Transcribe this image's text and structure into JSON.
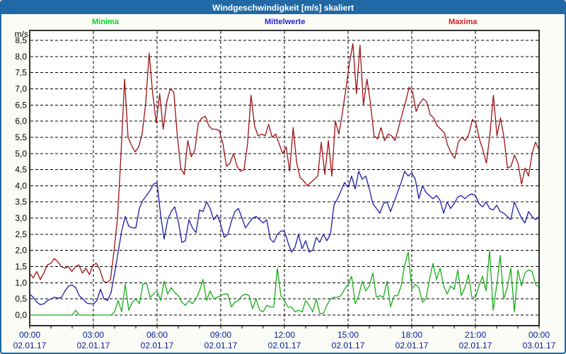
{
  "window": {
    "title": "Windgeschwindigkeit [m/s] skaliert"
  },
  "legend": {
    "minima": {
      "label": "Minima",
      "color": "#00d22c"
    },
    "mittelwerte": {
      "label": "Mittelwerte",
      "color": "#2626d2"
    },
    "maxima": {
      "label": "Maxima",
      "color": "#cd2026"
    }
  },
  "colors": {
    "frame": "#2069A5",
    "titlebar": "#2069A5",
    "window_bg": "#fcfcf6",
    "plot_bg": "#ffffff",
    "grid": "#000000",
    "y_label": "#000000",
    "x_label": "#001a99",
    "minima_line": "#17ad17",
    "mittelwerte_line": "#1c1ca8",
    "maxima_line": "#a01014"
  },
  "chart_data": {
    "type": "line",
    "title": "Windgeschwindigkeit [m/s] skaliert",
    "y_unit": "m/s",
    "ylim": [
      0,
      8.5
    ],
    "y_tick_step": 0.5,
    "y_tick_labels": [
      "0,0",
      "0,5",
      "1,0",
      "1,5",
      "2,0",
      "2,5",
      "3,0",
      "3,5",
      "4,0",
      "4,5",
      "5,0",
      "5,5",
      "6,0",
      "6,5",
      "7,0",
      "7,5",
      "8,0",
      "8,5"
    ],
    "x_ticks": [
      {
        "time": "00:00",
        "date": "02.01.17"
      },
      {
        "time": "03:00",
        "date": "02.01.17"
      },
      {
        "time": "06:00",
        "date": "02.01.17"
      },
      {
        "time": "09:00",
        "date": "02.01.17"
      },
      {
        "time": "12:00",
        "date": "02.01.17"
      },
      {
        "time": "15:00",
        "date": "02.01.17"
      },
      {
        "time": "18:00",
        "date": "02.01.17"
      },
      {
        "time": "21:00",
        "date": "02.01.17"
      },
      {
        "time": "00:00",
        "date": "03.01.17"
      }
    ],
    "x_minor_tick_hours": 1,
    "sample_interval_minutes": 10,
    "grid": "dashed",
    "legend_position": "top",
    "series": [
      {
        "name": "Minima",
        "color": "#17ad17",
        "values": [
          0.0,
          0.0,
          0.0,
          0.0,
          0.0,
          0.0,
          0.0,
          0.0,
          0.0,
          0.0,
          0.0,
          0.0,
          0.0,
          0.15,
          0.0,
          0.0,
          0.0,
          0.0,
          0.0,
          0.0,
          0.0,
          0.0,
          0.0,
          0.0,
          0.1,
          0.45,
          0.1,
          0.95,
          0.15,
          0.4,
          0.5,
          0.35,
          0.95,
          1.0,
          0.55,
          0.65,
          0.75,
          0.45,
          1.05,
          0.65,
          0.85,
          0.7,
          0.6,
          0.4,
          0.3,
          0.45,
          0.35,
          0.5,
          0.75,
          1.1,
          0.45,
          0.75,
          0.5,
          0.55,
          0.6,
          0.65,
          0.65,
          0.25,
          0.4,
          0.45,
          0.6,
          0.65,
          0.6,
          0.2,
          0.5,
          0.15,
          0.1,
          0.3,
          0.25,
          0.25,
          1.45,
          0.6,
          0.45,
          0.25,
          0.25,
          0.1,
          0.15,
          0.1,
          0.45,
          0.3,
          0.1,
          0.5,
          0.05,
          0.05,
          0.3,
          0.5,
          0.55,
          0.55,
          0.6,
          0.8,
          0.95,
          1.2,
          0.35,
          0.6,
          1.05,
          0.75,
          0.9,
          1.3,
          0.55,
          0.6,
          0.55,
          1.05,
          0.25,
          0.6,
          0.6,
          0.9,
          1.55,
          1.95,
          0.8,
          0.95,
          0.85,
          0.4,
          0.5,
          1.1,
          1.6,
          1.1,
          1.45,
          0.9,
          0.65,
          0.9,
          0.8,
          1.4,
          0.6,
          0.85,
          1.25,
          0.55,
          0.55,
          0.9,
          1.2,
          0.75,
          2.0,
          0.15,
          0.9,
          1.85,
          0.5,
          0.85,
          1.45,
          0.1,
          1.4,
          0.9,
          1.3,
          1.4,
          1.35,
          0.95,
          0.85
        ]
      },
      {
        "name": "Mittelwerte",
        "color": "#1c1ca8",
        "values": [
          0.65,
          0.55,
          0.4,
          0.32,
          0.35,
          0.45,
          0.5,
          0.55,
          0.52,
          0.55,
          0.75,
          0.9,
          0.93,
          0.85,
          0.6,
          0.5,
          0.38,
          0.35,
          0.35,
          0.45,
          0.8,
          0.5,
          0.45,
          0.7,
          1.3,
          1.95,
          2.6,
          3.05,
          2.75,
          2.7,
          2.7,
          3.3,
          3.55,
          3.7,
          3.85,
          4.05,
          4.1,
          3.1,
          2.35,
          2.95,
          3.2,
          3.35,
          2.9,
          2.25,
          2.3,
          2.95,
          2.7,
          2.55,
          3.25,
          3.2,
          3.5,
          3.3,
          2.95,
          3.1,
          2.8,
          2.4,
          2.5,
          2.9,
          3.2,
          3.3,
          3.0,
          2.7,
          2.85,
          3.0,
          3.05,
          2.95,
          2.85,
          2.95,
          2.35,
          2.25,
          2.5,
          2.6,
          2.6,
          2.25,
          1.95,
          2.1,
          2.5,
          2.05,
          2.3,
          1.95,
          2.0,
          2.4,
          2.25,
          2.5,
          2.3,
          2.5,
          3.4,
          3.6,
          3.85,
          4.1,
          3.95,
          4.3,
          3.9,
          4.45,
          4.2,
          4.3,
          3.9,
          3.45,
          3.3,
          3.15,
          3.45,
          3.5,
          3.2,
          3.5,
          3.8,
          4.1,
          4.45,
          4.3,
          4.4,
          4.2,
          3.6,
          4.0,
          3.8,
          3.7,
          3.6,
          3.7,
          3.55,
          3.15,
          3.5,
          3.3,
          3.45,
          3.65,
          3.7,
          3.6,
          3.7,
          3.75,
          3.7,
          3.45,
          3.35,
          3.5,
          3.3,
          3.25,
          3.4,
          3.2,
          3.15,
          3.05,
          2.95,
          3.5,
          3.25,
          3.0,
          2.85,
          3.2,
          3.05,
          2.95,
          3.05
        ]
      },
      {
        "name": "Maxima",
        "color": "#a01014",
        "values": [
          1.3,
          1.15,
          1.35,
          1.1,
          1.3,
          1.55,
          1.6,
          1.75,
          1.65,
          1.5,
          1.45,
          1.5,
          1.35,
          1.5,
          1.55,
          1.3,
          1.45,
          1.25,
          1.55,
          1.6,
          1.4,
          1.05,
          1.0,
          1.1,
          2.0,
          3.0,
          5.0,
          7.3,
          5.5,
          5.25,
          5.05,
          5.2,
          5.6,
          6.55,
          8.1,
          6.85,
          5.95,
          6.85,
          5.75,
          6.6,
          7.0,
          6.9,
          5.55,
          4.55,
          4.35,
          5.4,
          4.9,
          5.1,
          5.95,
          6.1,
          6.15,
          5.85,
          5.75,
          5.75,
          5.7,
          5.3,
          4.6,
          4.7,
          5.0,
          4.6,
          4.45,
          4.5,
          5.3,
          6.8,
          5.85,
          5.55,
          5.6,
          5.55,
          5.9,
          5.5,
          5.6,
          5.3,
          5.0,
          5.2,
          4.45,
          5.8,
          4.7,
          4.25,
          4.15,
          4.0,
          4.1,
          4.2,
          4.3,
          5.35,
          4.35,
          5.4,
          4.3,
          6.0,
          5.6,
          6.25,
          7.0,
          7.8,
          8.4,
          6.85,
          8.35,
          6.5,
          7.3,
          6.55,
          5.55,
          5.45,
          5.8,
          5.4,
          5.6,
          5.55,
          5.4,
          5.8,
          6.2,
          6.6,
          7.05,
          6.9,
          6.3,
          6.55,
          6.7,
          6.6,
          6.2,
          6.1,
          5.85,
          5.75,
          5.65,
          5.25,
          5.0,
          4.85,
          5.35,
          5.5,
          5.4,
          5.6,
          6.05,
          5.95,
          5.45,
          5.1,
          4.7,
          5.6,
          6.8,
          5.55,
          6.1,
          5.5,
          4.55,
          4.6,
          4.95,
          4.7,
          4.05,
          4.55,
          4.3,
          5.0,
          5.35,
          5.1
        ]
      }
    ]
  }
}
